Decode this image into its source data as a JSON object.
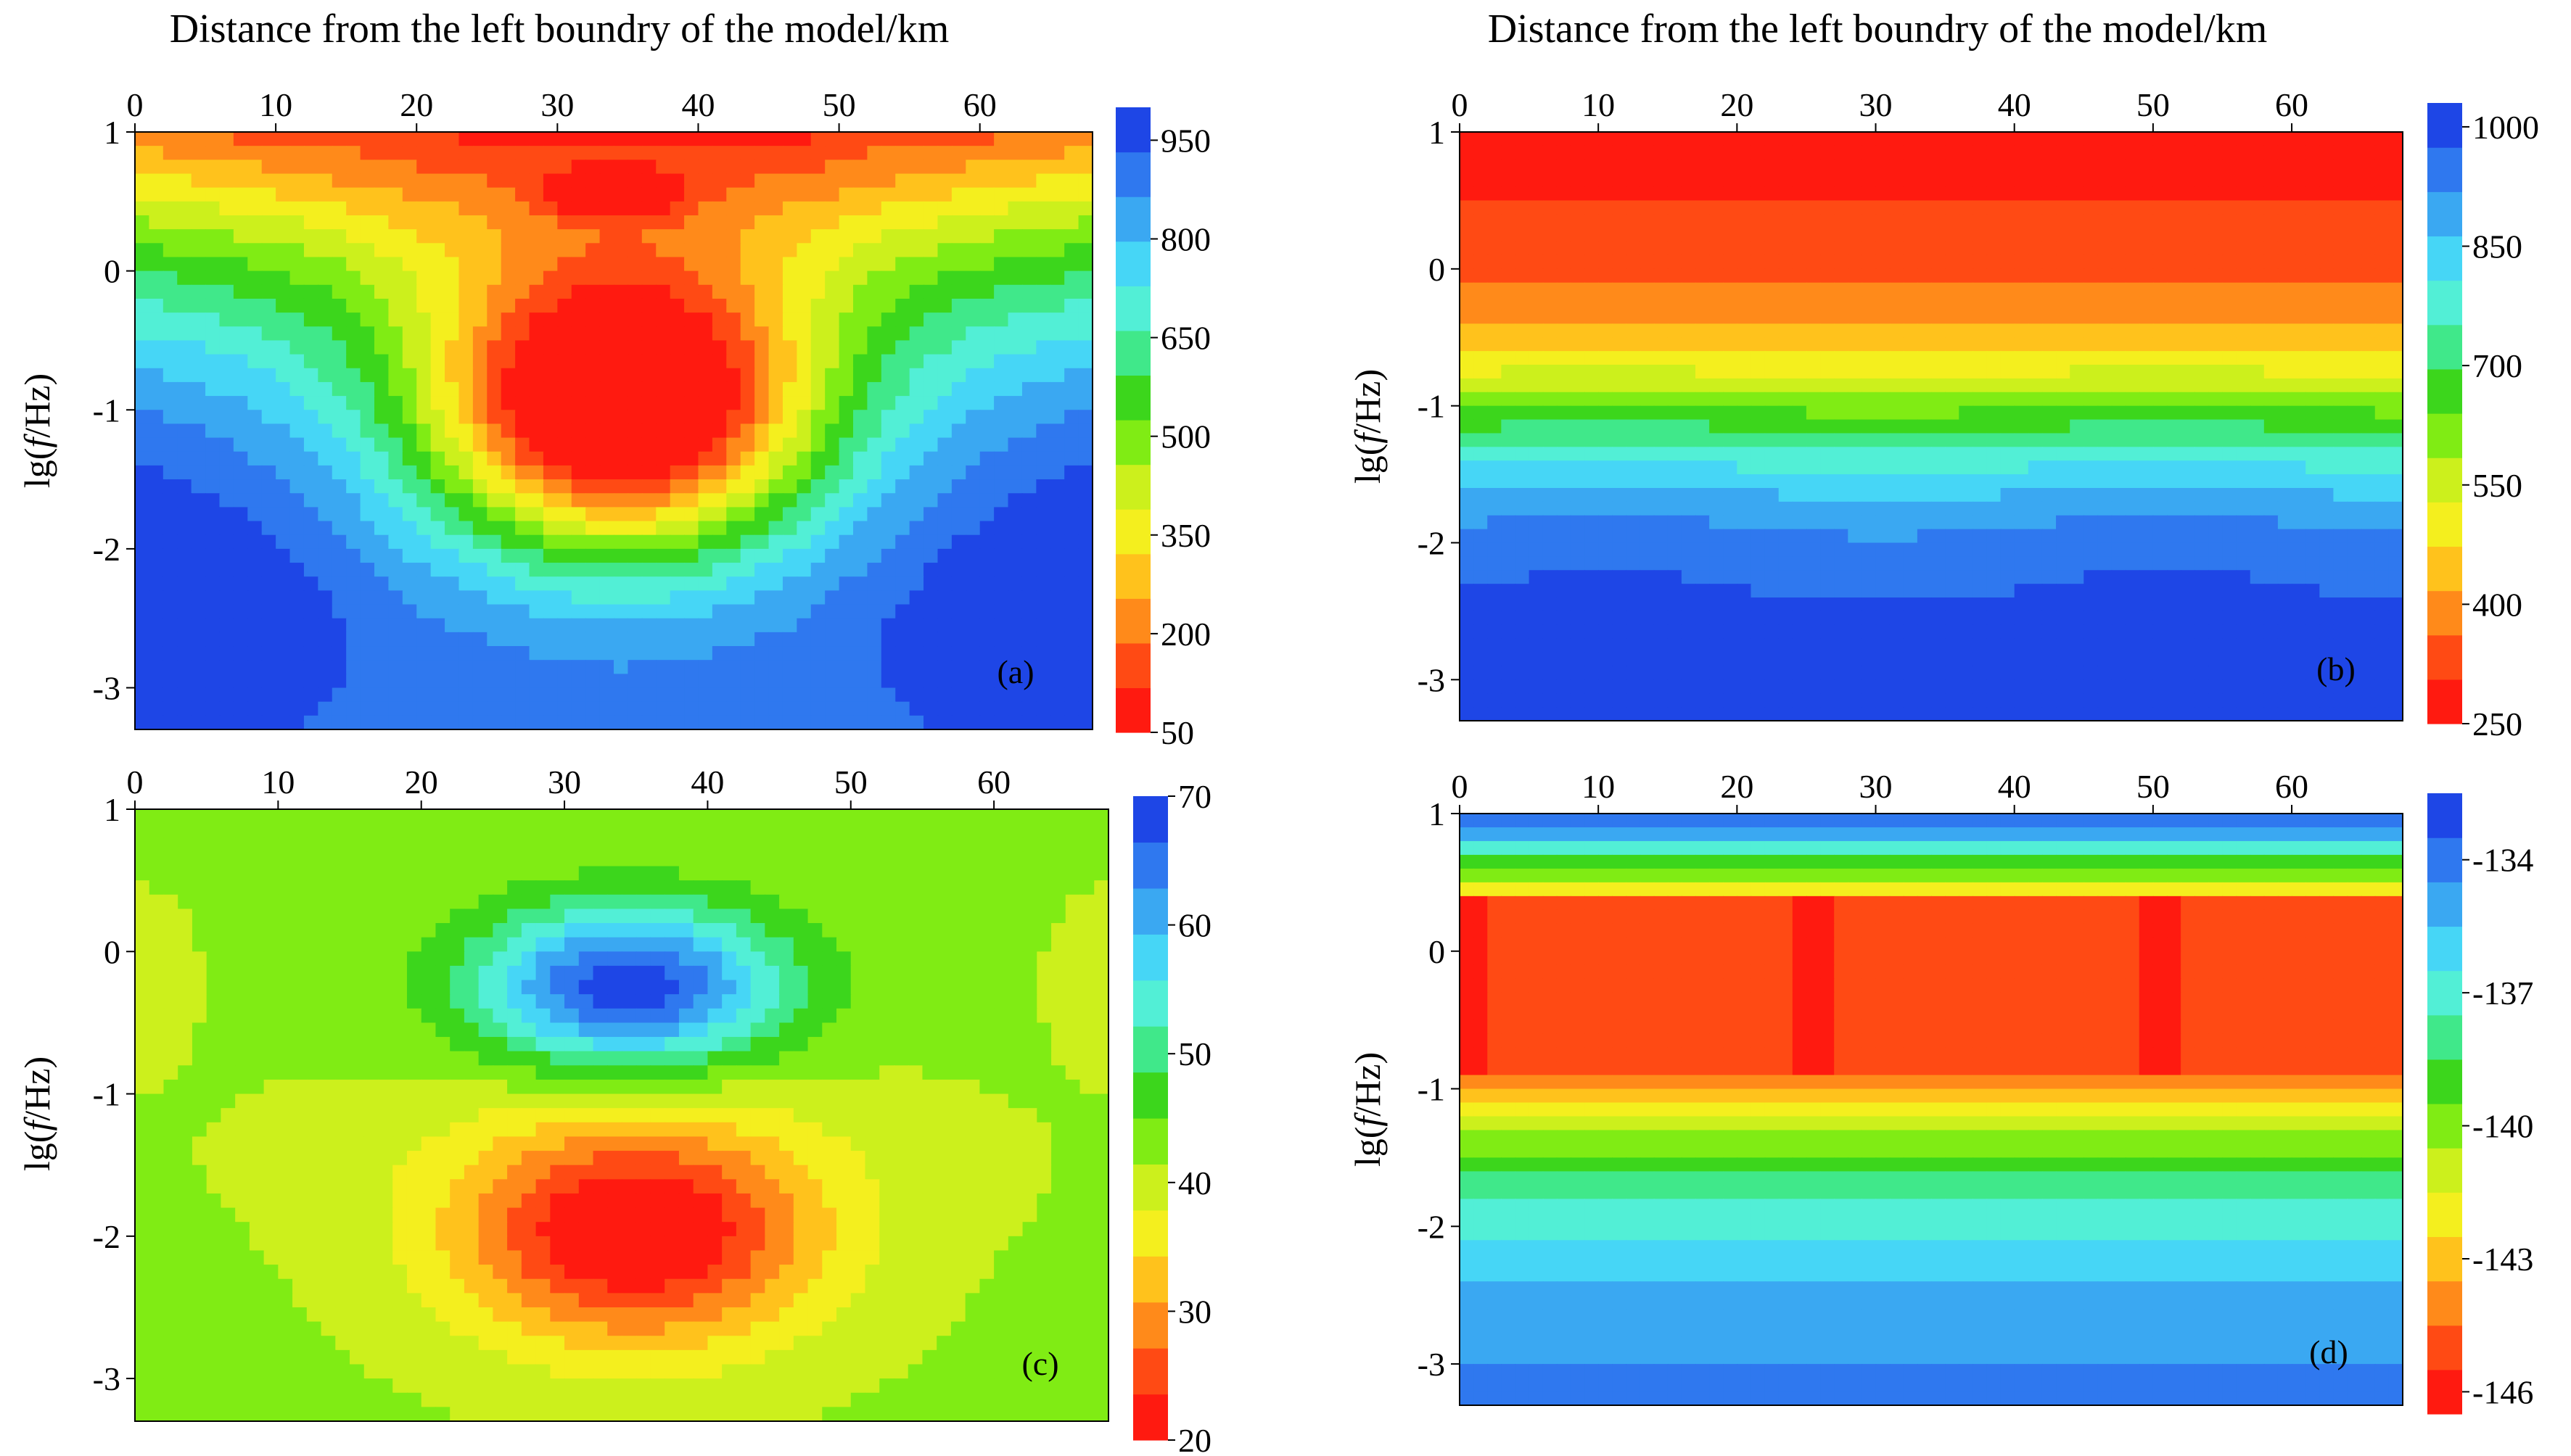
{
  "figure": {
    "colormap": [
      "#ff1a10",
      "#ff4a14",
      "#ff8a1a",
      "#ffc21c",
      "#f4ef1e",
      "#ccf01c",
      "#80ec14",
      "#3cd61c",
      "#40e88a",
      "#52efd6",
      "#46d6f6",
      "#3aa8f2",
      "#2f78ef",
      "#1e46e6"
    ]
  },
  "chart_data": [
    {
      "id": "a",
      "type": "heatmap",
      "panel_label": "(a)",
      "title": "Distance from the left boundry of the model/km",
      "ylabel_prefix": "lg(",
      "ylabel_italic": "f",
      "ylabel_suffix": "/Hz)",
      "xlim": [
        0,
        68
      ],
      "ylim": [
        -3.3,
        1
      ],
      "x_ticks": [
        "0",
        "10",
        "20",
        "30",
        "40",
        "50",
        "60"
      ],
      "y_ticks": [
        "1",
        "0",
        "-1",
        "-2",
        "-3"
      ],
      "colorbar": {
        "min": 50,
        "max": 1000,
        "ticks": [
          "50",
          "200",
          "350",
          "500",
          "650",
          "800",
          "950"
        ]
      },
      "field": "bowl-shaped low-value zone centred near x=35 km between lg f = 0 and -2; high values at low frequency and edges"
    },
    {
      "id": "b",
      "type": "heatmap",
      "panel_label": "(b)",
      "title": "Distance from the left boundry of the model/km",
      "ylabel_prefix": "lg(",
      "ylabel_italic": "f",
      "ylabel_suffix": "/Hz)",
      "xlim": [
        0,
        68
      ],
      "ylim": [
        -3.3,
        1
      ],
      "x_ticks": [
        "0",
        "10",
        "20",
        "30",
        "40",
        "50",
        "60"
      ],
      "y_ticks": [
        "1",
        "0",
        "-1",
        "-2",
        "-3"
      ],
      "colorbar": {
        "min": 250,
        "max": 1030,
        "ticks": [
          "250",
          "400",
          "550",
          "700",
          "850",
          "1000"
        ]
      },
      "field": "horizontally layered; low values above lg f = 0, increasing to high values below lg f = -2.5"
    },
    {
      "id": "c",
      "type": "heatmap",
      "panel_label": "(c)",
      "title": "",
      "ylabel_prefix": "lg(",
      "ylabel_italic": "f",
      "ylabel_suffix": "/Hz)",
      "xlim": [
        0,
        68
      ],
      "ylim": [
        -3.3,
        1
      ],
      "x_ticks": [
        "0",
        "10",
        "20",
        "30",
        "40",
        "50",
        "60"
      ],
      "y_ticks": [
        "1",
        "0",
        "-1",
        "-2",
        "-3"
      ],
      "colorbar": {
        "min": 20,
        "max": 70,
        "ticks": [
          "20",
          "30",
          "40",
          "50",
          "60",
          "70"
        ]
      },
      "field": "high anomaly near x=35 km at lg f = -0.3; low anomaly near x=35 km at lg f = -2; background about 42"
    },
    {
      "id": "d",
      "type": "heatmap",
      "panel_label": "(d)",
      "title": "",
      "ylabel_prefix": "lg(",
      "ylabel_italic": "f",
      "ylabel_suffix": "/Hz)",
      "xlim": [
        0,
        68
      ],
      "ylim": [
        -3.3,
        1
      ],
      "x_ticks": [
        "0",
        "10",
        "20",
        "30",
        "40",
        "50",
        "60"
      ],
      "y_ticks": [
        "1",
        "0",
        "-1",
        "-2",
        "-3"
      ],
      "colorbar": {
        "min": -146.5,
        "max": -132.5,
        "ticks": [
          "-146",
          "-143",
          "-140",
          "-137",
          "-134"
        ]
      },
      "field": "high values near lg f = 1; low band between lg f = 0.4 and -0.9; increasing again below lg f = -1.5"
    }
  ]
}
